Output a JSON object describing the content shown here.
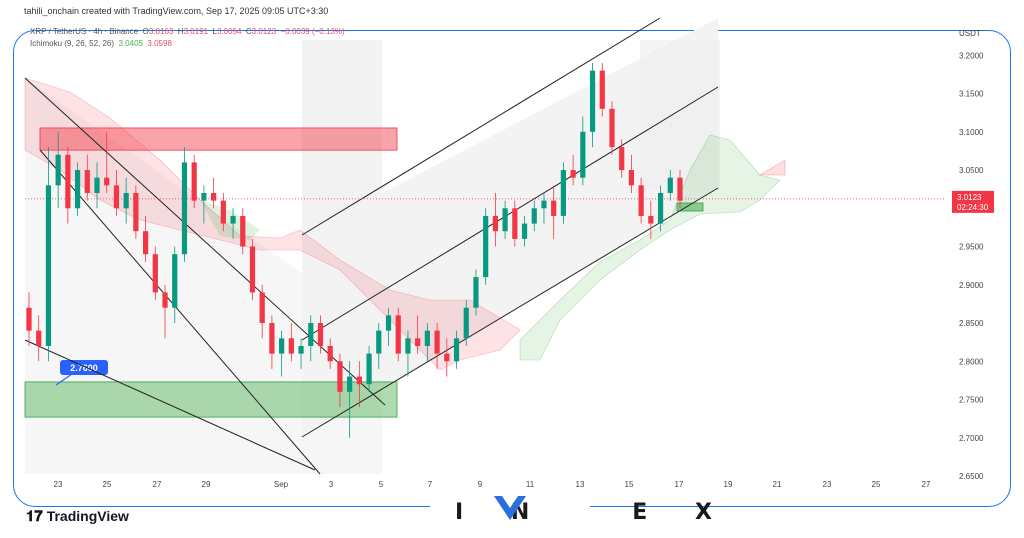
{
  "header": {
    "byline": "tahili_onchain created with TradingView.com, Sep 17, 2025 09:05 UTC+3:30"
  },
  "legend": {
    "symbol": "XRP / TetherUS · 4h · Binance",
    "open_label": "O",
    "open": "3.0163",
    "high_label": "H",
    "high": "3.0191",
    "low_label": "L",
    "low": "3.0054",
    "close_label": "C",
    "close": "3.0123",
    "change": "−0.0039 (−0.13%)",
    "indicator": "Ichimoku (9, 26, 52, 26)",
    "ind_val1": "3.0405",
    "ind_val2": "3.0598"
  },
  "price_axis": {
    "currency": "USDT",
    "labels": [
      "3.2000",
      "3.1500",
      "3.1000",
      "3.0500",
      "2.9500",
      "2.9000",
      "2.8500",
      "2.8000",
      "2.7500",
      "2.7000",
      "2.6500"
    ],
    "current_price": "3.0123",
    "countdown": "02:24:30",
    "current_color": "#f23645"
  },
  "support_label": "2.7600",
  "footer": {
    "brand": "TradingView",
    "partner": "INVEX"
  },
  "chart_data": {
    "type": "candlestick",
    "symbol": "XRP / TetherUS",
    "timeframe": "4h",
    "x_tick_labels": [
      "23",
      "25",
      "27",
      "29",
      "Sep",
      "3",
      "5",
      "7",
      "9",
      "11",
      "13",
      "15",
      "17",
      "19",
      "21",
      "23",
      "25",
      "27"
    ],
    "ylim": [
      2.65,
      3.22
    ],
    "candles": [
      {
        "o": 2.87,
        "h": 2.89,
        "l": 2.82,
        "c": 2.84
      },
      {
        "o": 2.84,
        "h": 2.86,
        "l": 2.8,
        "c": 2.82
      },
      {
        "o": 2.82,
        "h": 3.08,
        "l": 2.8,
        "c": 3.03
      },
      {
        "o": 3.03,
        "h": 3.1,
        "l": 3.0,
        "c": 3.07
      },
      {
        "o": 3.07,
        "h": 3.08,
        "l": 2.98,
        "c": 3.0
      },
      {
        "o": 3.0,
        "h": 3.06,
        "l": 2.99,
        "c": 3.05
      },
      {
        "o": 3.05,
        "h": 3.07,
        "l": 3.01,
        "c": 3.02
      },
      {
        "o": 3.02,
        "h": 3.06,
        "l": 3.0,
        "c": 3.04
      },
      {
        "o": 3.04,
        "h": 3.1,
        "l": 3.02,
        "c": 3.03
      },
      {
        "o": 3.03,
        "h": 3.05,
        "l": 2.99,
        "c": 3.0
      },
      {
        "o": 3.0,
        "h": 3.04,
        "l": 2.98,
        "c": 3.02
      },
      {
        "o": 3.02,
        "h": 3.03,
        "l": 2.96,
        "c": 2.97
      },
      {
        "o": 2.97,
        "h": 2.99,
        "l": 2.93,
        "c": 2.94
      },
      {
        "o": 2.94,
        "h": 2.95,
        "l": 2.88,
        "c": 2.89
      },
      {
        "o": 2.89,
        "h": 2.9,
        "l": 2.83,
        "c": 2.87
      },
      {
        "o": 2.87,
        "h": 2.95,
        "l": 2.85,
        "c": 2.94
      },
      {
        "o": 2.94,
        "h": 3.08,
        "l": 2.93,
        "c": 3.06
      },
      {
        "o": 3.06,
        "h": 3.07,
        "l": 3.0,
        "c": 3.01
      },
      {
        "o": 3.01,
        "h": 3.03,
        "l": 2.98,
        "c": 3.02
      },
      {
        "o": 3.02,
        "h": 3.04,
        "l": 3.0,
        "c": 3.01
      },
      {
        "o": 3.01,
        "h": 3.02,
        "l": 2.97,
        "c": 2.98
      },
      {
        "o": 2.98,
        "h": 3.0,
        "l": 2.96,
        "c": 2.99
      },
      {
        "o": 2.99,
        "h": 3.0,
        "l": 2.94,
        "c": 2.95
      },
      {
        "o": 2.95,
        "h": 2.96,
        "l": 2.88,
        "c": 2.89
      },
      {
        "o": 2.89,
        "h": 2.9,
        "l": 2.83,
        "c": 2.85
      },
      {
        "o": 2.85,
        "h": 2.86,
        "l": 2.79,
        "c": 2.81
      },
      {
        "o": 2.81,
        "h": 2.84,
        "l": 2.78,
        "c": 2.83
      },
      {
        "o": 2.83,
        "h": 2.85,
        "l": 2.8,
        "c": 2.81
      },
      {
        "o": 2.81,
        "h": 2.83,
        "l": 2.79,
        "c": 2.82
      },
      {
        "o": 2.82,
        "h": 2.86,
        "l": 2.8,
        "c": 2.85
      },
      {
        "o": 2.85,
        "h": 2.86,
        "l": 2.81,
        "c": 2.82
      },
      {
        "o": 2.82,
        "h": 2.83,
        "l": 2.79,
        "c": 2.8
      },
      {
        "o": 2.8,
        "h": 2.81,
        "l": 2.74,
        "c": 2.76
      },
      {
        "o": 2.76,
        "h": 2.8,
        "l": 2.7,
        "c": 2.78
      },
      {
        "o": 2.78,
        "h": 2.8,
        "l": 2.74,
        "c": 2.77
      },
      {
        "o": 2.77,
        "h": 2.82,
        "l": 2.76,
        "c": 2.81
      },
      {
        "o": 2.81,
        "h": 2.85,
        "l": 2.79,
        "c": 2.84
      },
      {
        "o": 2.84,
        "h": 2.87,
        "l": 2.82,
        "c": 2.86
      },
      {
        "o": 2.86,
        "h": 2.87,
        "l": 2.8,
        "c": 2.81
      },
      {
        "o": 2.81,
        "h": 2.84,
        "l": 2.78,
        "c": 2.83
      },
      {
        "o": 2.83,
        "h": 2.86,
        "l": 2.81,
        "c": 2.82
      },
      {
        "o": 2.82,
        "h": 2.85,
        "l": 2.8,
        "c": 2.84
      },
      {
        "o": 2.84,
        "h": 2.85,
        "l": 2.79,
        "c": 2.81
      },
      {
        "o": 2.81,
        "h": 2.83,
        "l": 2.78,
        "c": 2.8
      },
      {
        "o": 2.8,
        "h": 2.84,
        "l": 2.79,
        "c": 2.83
      },
      {
        "o": 2.83,
        "h": 2.88,
        "l": 2.82,
        "c": 2.87
      },
      {
        "o": 2.87,
        "h": 2.92,
        "l": 2.86,
        "c": 2.91
      },
      {
        "o": 2.91,
        "h": 3.0,
        "l": 2.9,
        "c": 2.99
      },
      {
        "o": 2.99,
        "h": 3.02,
        "l": 2.95,
        "c": 2.97
      },
      {
        "o": 2.97,
        "h": 3.01,
        "l": 2.96,
        "c": 3.0
      },
      {
        "o": 3.0,
        "h": 3.01,
        "l": 2.95,
        "c": 2.96
      },
      {
        "o": 2.96,
        "h": 2.99,
        "l": 2.95,
        "c": 2.98
      },
      {
        "o": 2.98,
        "h": 3.01,
        "l": 2.97,
        "c": 3.0
      },
      {
        "o": 3.0,
        "h": 3.02,
        "l": 2.98,
        "c": 3.01
      },
      {
        "o": 3.01,
        "h": 3.03,
        "l": 2.96,
        "c": 2.99
      },
      {
        "o": 2.99,
        "h": 3.06,
        "l": 2.98,
        "c": 3.05
      },
      {
        "o": 3.05,
        "h": 3.07,
        "l": 3.03,
        "c": 3.04
      },
      {
        "o": 3.04,
        "h": 3.12,
        "l": 3.03,
        "c": 3.1
      },
      {
        "o": 3.1,
        "h": 3.19,
        "l": 3.08,
        "c": 3.18
      },
      {
        "o": 3.18,
        "h": 3.19,
        "l": 3.12,
        "c": 3.13
      },
      {
        "o": 3.13,
        "h": 3.14,
        "l": 3.07,
        "c": 3.08
      },
      {
        "o": 3.08,
        "h": 3.09,
        "l": 3.04,
        "c": 3.05
      },
      {
        "o": 3.05,
        "h": 3.07,
        "l": 3.02,
        "c": 3.03
      },
      {
        "o": 3.03,
        "h": 3.04,
        "l": 2.98,
        "c": 2.99
      },
      {
        "o": 2.99,
        "h": 3.01,
        "l": 2.96,
        "c": 2.98
      },
      {
        "o": 2.98,
        "h": 3.03,
        "l": 2.97,
        "c": 3.02
      },
      {
        "o": 3.02,
        "h": 3.05,
        "l": 3.01,
        "c": 3.04
      },
      {
        "o": 3.04,
        "h": 3.05,
        "l": 3.0,
        "c": 3.01
      }
    ],
    "annotations": {
      "resistance_zone": {
        "low": 3.076,
        "high": 3.105
      },
      "support_zone": {
        "low": 2.727,
        "high": 2.773
      },
      "support_label": "2.7600",
      "current_price_line": 3.0123
    },
    "indicator": "Ichimoku (9, 26, 52, 26)"
  }
}
